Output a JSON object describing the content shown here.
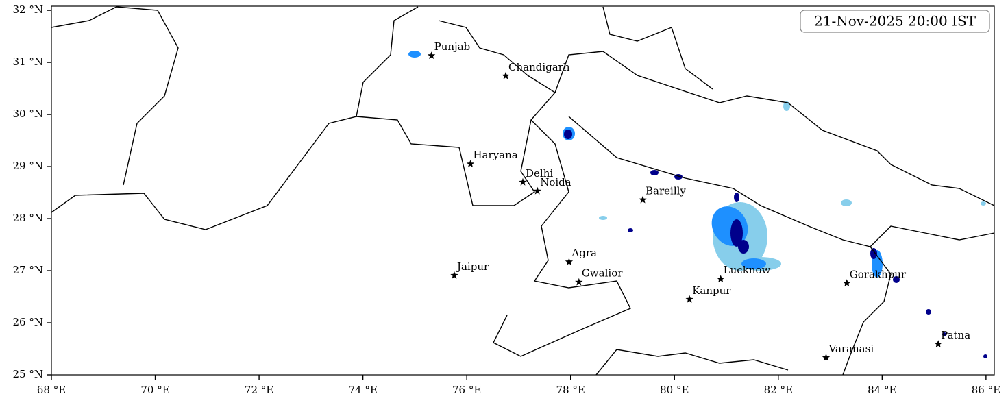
{
  "chart_data": {
    "type": "map",
    "title": "21-Nov-2025 20:00 IST",
    "xlim": [
      68,
      86.16
    ],
    "ylim": [
      25,
      32.08
    ],
    "xticks": [
      {
        "value": 68,
        "label": "68 °E"
      },
      {
        "value": 70,
        "label": "70 °E"
      },
      {
        "value": 72,
        "label": "72 °E"
      },
      {
        "value": 74,
        "label": "74 °E"
      },
      {
        "value": 76,
        "label": "76 °E"
      },
      {
        "value": 78,
        "label": "78 °E"
      },
      {
        "value": 80,
        "label": "80 °E"
      },
      {
        "value": 82,
        "label": "82 °E"
      },
      {
        "value": 84,
        "label": "84 °E"
      },
      {
        "value": 86,
        "label": "86 °E"
      }
    ],
    "yticks": [
      {
        "value": 25,
        "label": "25 °N"
      },
      {
        "value": 26,
        "label": "26 °N"
      },
      {
        "value": 27,
        "label": "27 °N"
      },
      {
        "value": 28,
        "label": "28 °N"
      },
      {
        "value": 29,
        "label": "29 °N"
      },
      {
        "value": 30,
        "label": "30 °N"
      },
      {
        "value": 31,
        "label": "31 °N"
      },
      {
        "value": 32,
        "label": "32 °N"
      }
    ],
    "cities": [
      {
        "name": "Punjab",
        "lon": 75.32,
        "lat": 31.13
      },
      {
        "name": "Chandigarh",
        "lon": 76.75,
        "lat": 30.74
      },
      {
        "name": "Haryana",
        "lon": 76.07,
        "lat": 29.05
      },
      {
        "name": "Delhi",
        "lon": 77.08,
        "lat": 28.7
      },
      {
        "name": "Noida",
        "lon": 77.36,
        "lat": 28.53
      },
      {
        "name": "Bareilly",
        "lon": 79.39,
        "lat": 28.36
      },
      {
        "name": "Agra",
        "lon": 77.97,
        "lat": 27.17
      },
      {
        "name": "Jaipur",
        "lon": 75.76,
        "lat": 26.91
      },
      {
        "name": "Gwalior",
        "lon": 78.16,
        "lat": 26.78
      },
      {
        "name": "Lucknow",
        "lon": 80.89,
        "lat": 26.84
      },
      {
        "name": "Kanpur",
        "lon": 80.29,
        "lat": 26.45
      },
      {
        "name": "Gorakhpur",
        "lon": 83.32,
        "lat": 26.76
      },
      {
        "name": "Varanasi",
        "lon": 82.92,
        "lat": 25.33
      },
      {
        "name": "Patna",
        "lon": 85.08,
        "lat": 25.59
      }
    ],
    "marker_color": "#000000"
  }
}
